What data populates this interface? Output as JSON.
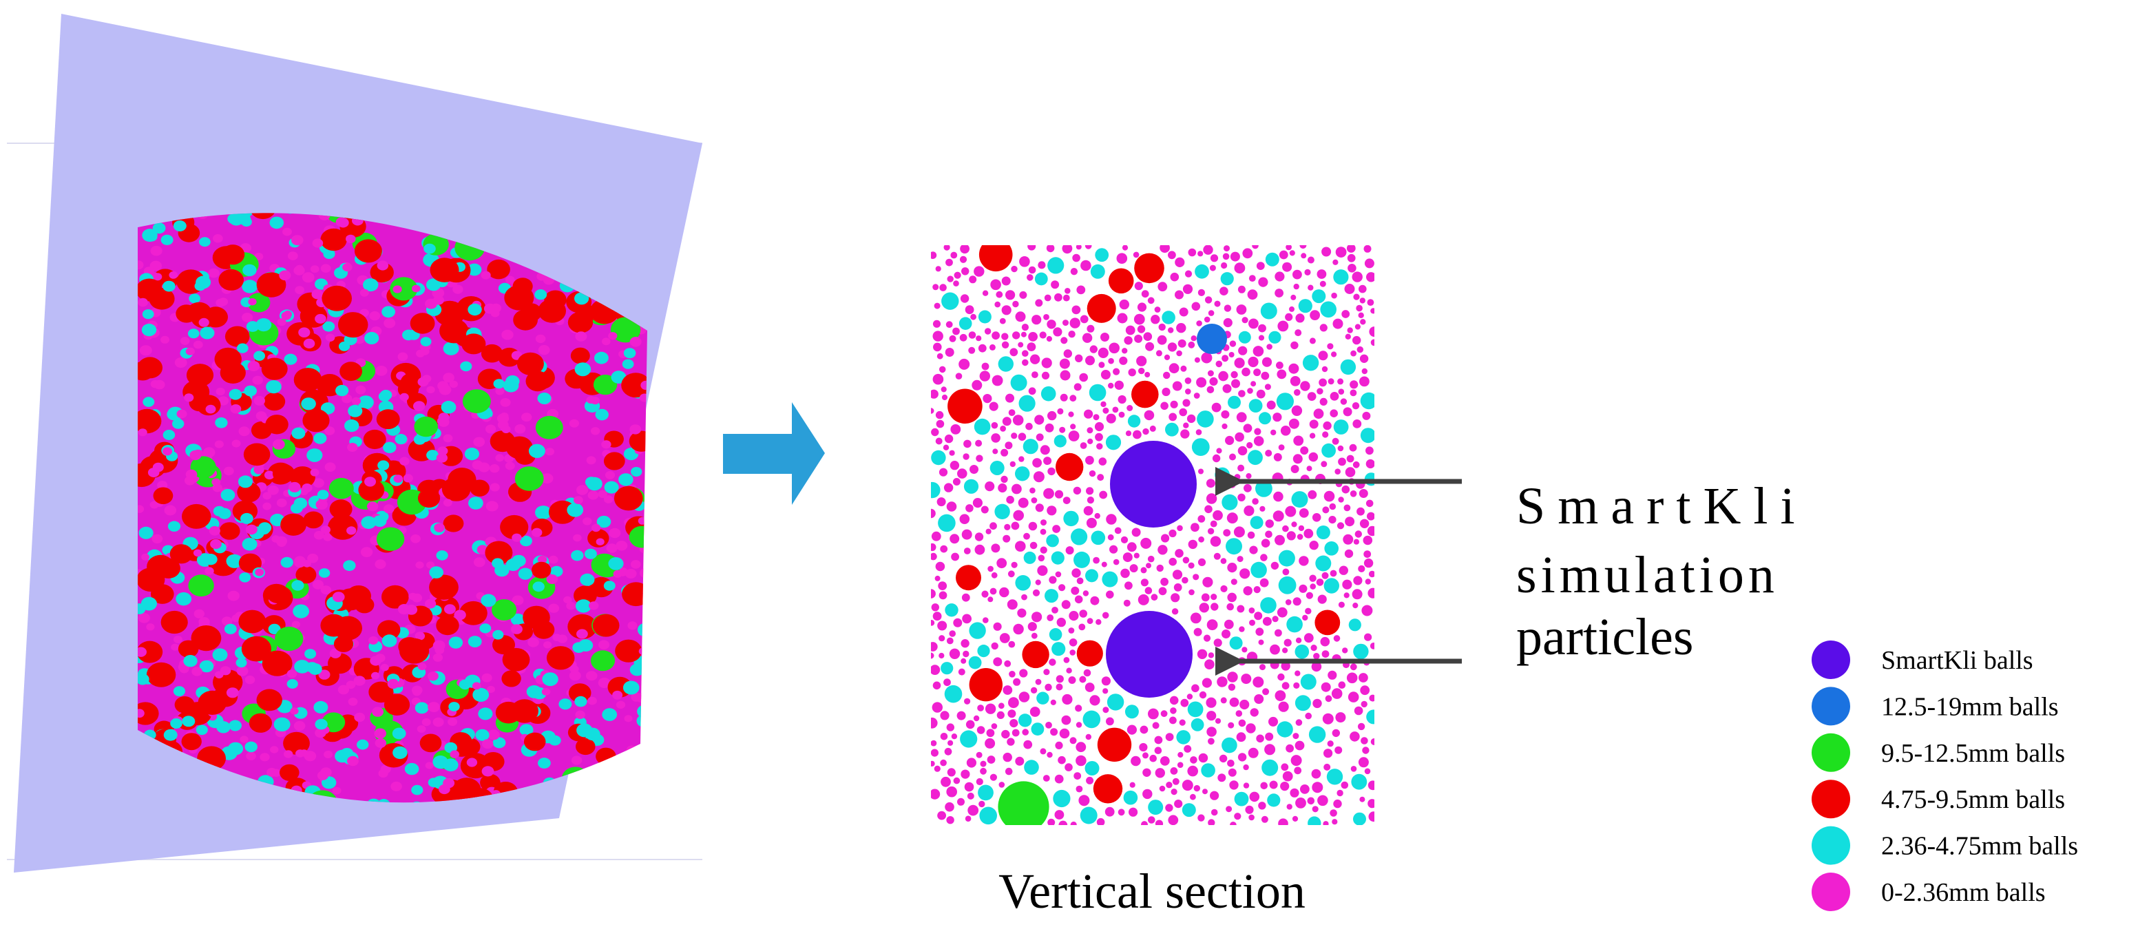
{
  "annotation": {
    "lines": [
      "SmartKli",
      "simulation",
      "particles"
    ]
  },
  "section_label": "Vertical section",
  "legend": [
    {
      "label": "SmartKli balls",
      "color": "#5a0de8"
    },
    {
      "label": "12.5-19mm balls",
      "color": "#1a72e0"
    },
    {
      "label": "9.5-12.5mm balls",
      "color": "#1ee01e"
    },
    {
      "label": "4.75-9.5mm balls",
      "color": "#f00000"
    },
    {
      "label": "2.36-4.75mm balls",
      "color": "#12dede"
    },
    {
      "label": "0-2.36mm balls",
      "color": "#f020d0"
    }
  ]
}
